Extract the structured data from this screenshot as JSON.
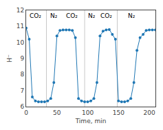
{
  "chart_data": {
    "type": "line",
    "x": [
      0,
      5,
      10,
      15,
      20,
      25,
      30,
      35,
      40,
      45,
      50,
      55,
      60,
      65,
      70,
      75,
      80,
      85,
      90,
      95,
      100,
      105,
      110,
      115,
      120,
      125,
      130,
      135,
      140,
      145,
      150,
      155,
      160,
      165,
      170,
      175,
      180,
      185,
      190,
      195,
      200,
      205,
      210
    ],
    "values": [
      10.9,
      10.2,
      6.6,
      6.35,
      6.3,
      6.3,
      6.3,
      6.35,
      6.5,
      7.5,
      10.4,
      10.75,
      10.78,
      10.78,
      10.78,
      10.75,
      10.3,
      6.5,
      6.35,
      6.3,
      6.3,
      6.35,
      6.5,
      7.5,
      10.4,
      10.7,
      10.78,
      10.8,
      10.5,
      10.2,
      6.35,
      6.3,
      6.3,
      6.35,
      6.5,
      7.5,
      9.5,
      10.3,
      10.5,
      10.75,
      10.78,
      10.78,
      10.78
    ],
    "xlim": [
      0,
      210
    ],
    "ylim": [
      6,
      12
    ],
    "xticks": [
      0,
      50,
      100,
      150,
      200
    ],
    "yticks": [
      6,
      7,
      8,
      9,
      10,
      11,
      12
    ],
    "xlabel": "Time, min",
    "ylabel": "H⁻",
    "vlines": [
      33,
      95,
      148
    ],
    "annotations": [
      {
        "text": "CO₂",
        "x": 3,
        "y": 11.65
      },
      {
        "text": "N₂",
        "x": 37,
        "y": 11.65
      },
      {
        "text": "CO₂",
        "x": 62,
        "y": 11.65
      },
      {
        "text": "N₂",
        "x": 98,
        "y": 11.65
      },
      {
        "text": "CO₂",
        "x": 118,
        "y": 11.65
      },
      {
        "text": "N₂",
        "x": 163,
        "y": 11.65
      }
    ],
    "marker": "circle",
    "grid": false
  }
}
